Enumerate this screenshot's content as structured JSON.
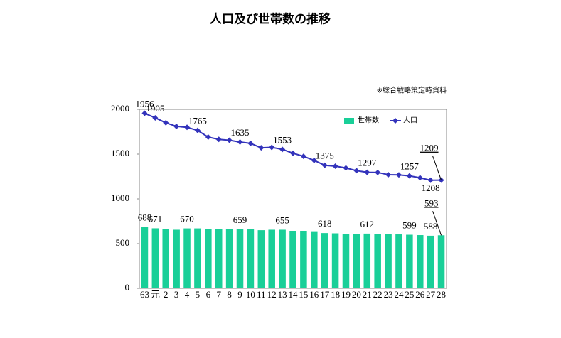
{
  "chart_data": {
    "type": "bar-line",
    "title": "人口及び世帯数の推移",
    "note": "※総合戦略策定時資料",
    "categories": [
      "63",
      "元",
      "2",
      "3",
      "4",
      "5",
      "6",
      "7",
      "8",
      "9",
      "10",
      "11",
      "12",
      "13",
      "14",
      "15",
      "16",
      "17",
      "18",
      "19",
      "20",
      "21",
      "22",
      "23",
      "24",
      "25",
      "26",
      "27",
      "28"
    ],
    "series": [
      {
        "name": "世帯数",
        "type": "bar",
        "color": "#19cf98",
        "values": [
          688,
          671,
          665,
          655,
          670,
          670,
          660,
          660,
          660,
          659,
          662,
          650,
          655,
          655,
          642,
          640,
          630,
          618,
          615,
          608,
          608,
          612,
          608,
          605,
          603,
          599,
          595,
          588,
          593
        ],
        "labeled": [
          0,
          1,
          4,
          9,
          13,
          17,
          21,
          25,
          27,
          28
        ]
      },
      {
        "name": "人口",
        "type": "line",
        "color": "#3333bb",
        "values": [
          1956,
          1905,
          1850,
          1810,
          1800,
          1765,
          1690,
          1665,
          1655,
          1635,
          1620,
          1570,
          1575,
          1553,
          1510,
          1475,
          1430,
          1375,
          1365,
          1345,
          1315,
          1297,
          1295,
          1270,
          1268,
          1257,
          1235,
          1208,
          1209
        ],
        "labeled": [
          0,
          1,
          5,
          9,
          13,
          17,
          21,
          25,
          27,
          28
        ]
      }
    ],
    "ylim": [
      0,
      2000
    ],
    "yticks": [
      0,
      500,
      1000,
      1500,
      2000
    ],
    "legend": "top-right"
  }
}
